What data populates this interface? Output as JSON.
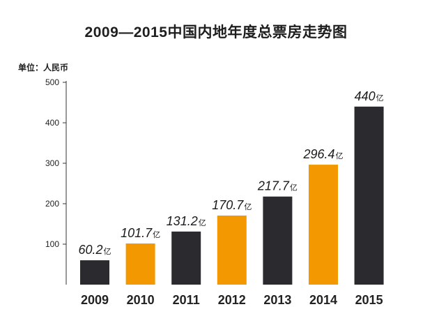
{
  "chart_data": {
    "type": "bar",
    "title": "2009—2015中国内地年度总票房走势图",
    "unit_label": "单位：人民币",
    "categories": [
      "2009",
      "2010",
      "2011",
      "2012",
      "2013",
      "2014",
      "2015"
    ],
    "values": [
      60.2,
      101.7,
      131.2,
      170.7,
      217.7,
      296.4,
      440
    ],
    "value_labels": [
      "60.2",
      "101.7",
      "131.2",
      "170.7",
      "217.7",
      "296.4",
      "440"
    ],
    "value_suffix": "亿",
    "bar_colors": [
      "#2b2b2f",
      "#f39800",
      "#2b2b2f",
      "#f39800",
      "#2b2b2f",
      "#f39800",
      "#2b2b2f"
    ],
    "ylim": [
      0,
      500
    ],
    "yticks": [
      100,
      200,
      300,
      400,
      500
    ],
    "grid": false,
    "xlabel": "",
    "ylabel": ""
  }
}
